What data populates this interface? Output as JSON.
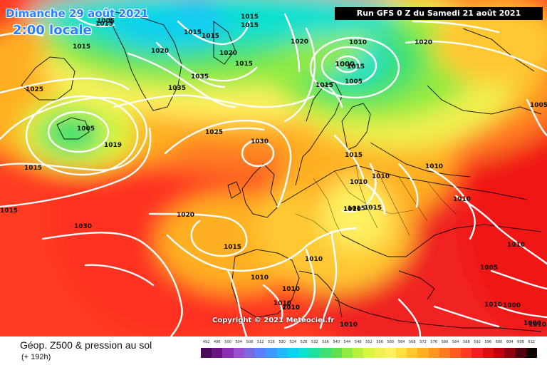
{
  "header": {
    "date": "Dimanche 29 août 2021",
    "time": "2:00 locale",
    "run": "Run GFS 0 Z du Samedi 21 août 2021"
  },
  "copyright": "Copyright © 2021 Meteociel.fr",
  "footer": {
    "title": "Géop. Z500 & pression au sol",
    "subtitle": "(+ 192h)"
  },
  "legend": {
    "ticks": [
      "492",
      "496",
      "500",
      "504",
      "508",
      "512",
      "516",
      "520",
      "524",
      "528",
      "532",
      "536",
      "540",
      "544",
      "548",
      "552",
      "556",
      "560",
      "564",
      "568",
      "572",
      "576",
      "580",
      "584",
      "588",
      "592",
      "596",
      "600",
      "604",
      "608",
      "612"
    ],
    "colors": [
      "#4a0a5a",
      "#6a1580",
      "#8a30b0",
      "#9650d0",
      "#7a6ae0",
      "#5a80ff",
      "#3a9aff",
      "#20b8ff",
      "#10d0f0",
      "#10e0d0",
      "#20e0a0",
      "#40e070",
      "#60e050",
      "#90ea40",
      "#b8f040",
      "#d8f540",
      "#f0f050",
      "#fff060",
      "#ffe040",
      "#ffc830",
      "#ffb020",
      "#ff9620",
      "#ff7a20",
      "#ff5a20",
      "#ff3a20",
      "#f02020",
      "#d81010",
      "#c00010",
      "#900010",
      "#500010",
      "#100000"
    ]
  },
  "isobars": [
    "1000",
    "1000",
    "1000",
    "1005",
    "1005",
    "1005",
    "1005",
    "1005",
    "1010",
    "1010",
    "1010",
    "1010",
    "1010",
    "1010",
    "1010",
    "1010",
    "1010",
    "1010",
    "1010",
    "1010",
    "1010",
    "1010",
    "1010",
    "1010",
    "1015",
    "1015",
    "1015",
    "1015",
    "1015",
    "1015",
    "1015",
    "1015",
    "1015",
    "1015",
    "1015",
    "1015",
    "1015",
    "1015",
    "1015",
    "1019",
    "1020",
    "1020",
    "1020",
    "1020",
    "1020",
    "1025",
    "1025",
    "1030",
    "1030",
    "1035",
    "1035"
  ]
}
